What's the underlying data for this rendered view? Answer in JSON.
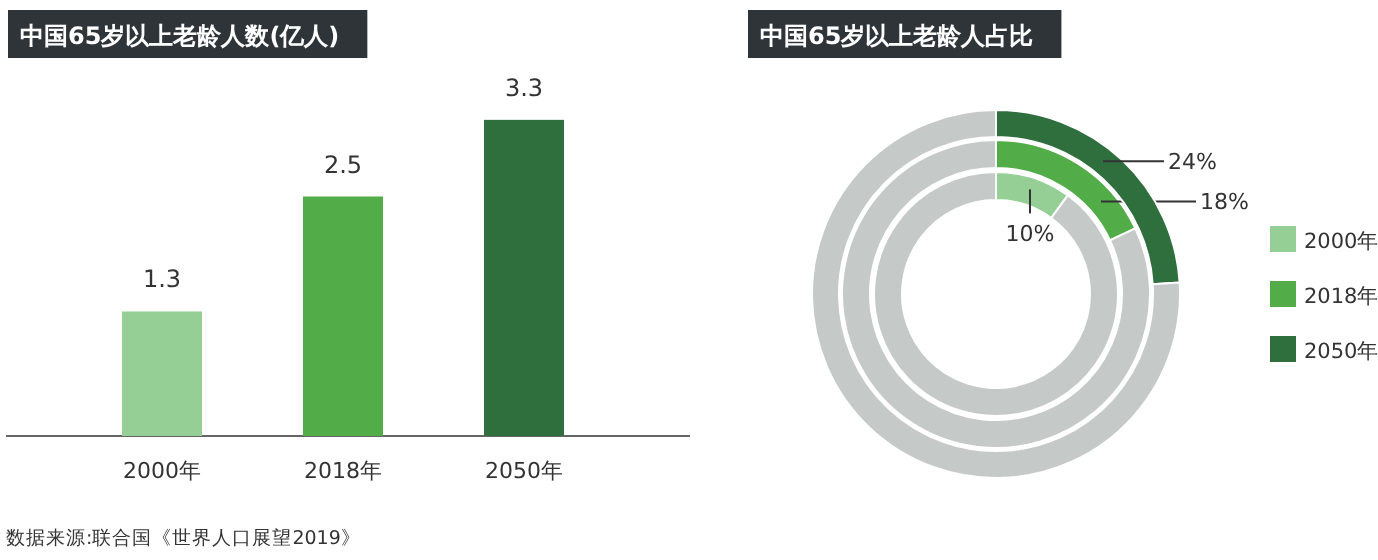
{
  "chart_data": [
    {
      "type": "bar",
      "title": "中国65岁以上老龄人数(亿人)",
      "categories": [
        "2000年",
        "2018年",
        "2050年"
      ],
      "values": [
        1.3,
        2.5,
        3.3
      ],
      "colors": [
        "#95cf96",
        "#52ad48",
        "#2f6f3e"
      ],
      "data_labels": true,
      "annotations": [
        "数据来源:联合国《世界人口展望2019》"
      ]
    },
    {
      "type": "donut",
      "title": "中国65岁以上老龄人占比",
      "categories": [
        null,
        null
      ],
      "legend": "right",
      "series": [
        {
          "name": "2000年",
          "color": "#95cf96",
          "values": [
            10,
            90
          ],
          "colors": [
            "#95cf96",
            "#c5c9c8"
          ],
          "value_labels": [
            "10%",
            null
          ]
        },
        {
          "name": "2018年",
          "color": "#52ad48",
          "values": [
            18,
            82
          ],
          "colors": [
            "#52ad48",
            "#c5c9c8"
          ],
          "value_labels": [
            "18%",
            null
          ]
        },
        {
          "name": "2050年",
          "color": "#2f6f3e",
          "values": [
            24,
            76
          ],
          "colors": [
            "#2f6f3e",
            "#c5c9c8"
          ],
          "value_labels": [
            "24%",
            null
          ]
        }
      ]
    }
  ]
}
